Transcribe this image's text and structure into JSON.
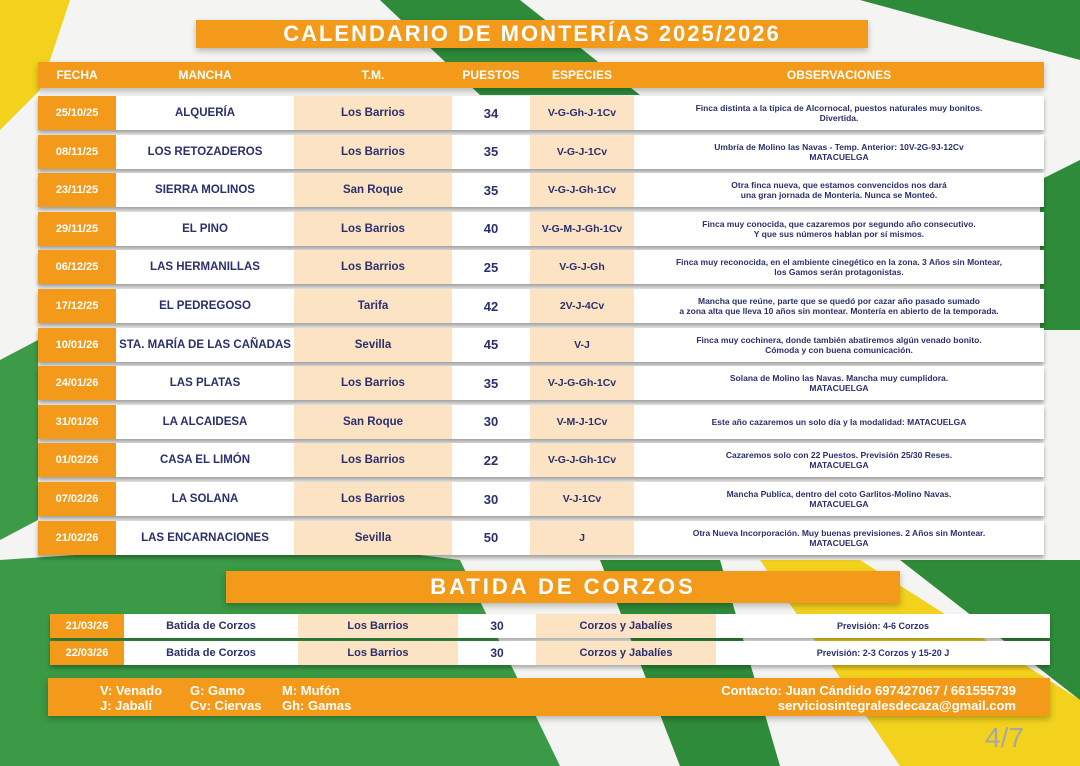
{
  "title": "CALENDARIO DE MONTERÍAS 2025/2026",
  "headers": [
    "FECHA",
    "MANCHA",
    "T.M.",
    "PUESTOS",
    "ESPECIES",
    "OBSERVACIONES"
  ],
  "rows": [
    [
      "25/10/25",
      "ALQUERÍA",
      "Los Barrios",
      "34",
      "V-G-Gh-J-1Cv",
      "Finca distinta a la típica de Alcornocal, puestos naturales muy bonitos.\nDivertida."
    ],
    [
      "08/11/25",
      "LOS RETOZADEROS",
      "Los Barrios",
      "35",
      "V-G-J-1Cv",
      "Umbría de Molino las Navas  - Temp. Anterior: 10V-2G-9J-12Cv\nMATACUELGA"
    ],
    [
      "23/11/25",
      "SIERRA MOLINOS",
      "San Roque",
      "35",
      "V-G-J-Gh-1Cv",
      "Otra finca nueva, que estamos convencidos nos dará\nuna gran jornada de Montería. Nunca se Monteó."
    ],
    [
      "29/11/25",
      "EL PINO",
      "Los Barrios",
      "40",
      "V-G-M-J-Gh-1Cv",
      "Finca muy conocida, que cazaremos por segundo año consecutivo.\nY que sus números hablan por sí mismos."
    ],
    [
      "06/12/25",
      "LAS HERMANILLAS",
      "Los Barrios",
      "25",
      "V-G-J-Gh",
      "Finca muy reconocida, en el ambiente cinegético en la zona. 3 Años sin Montear,\nlos Gamos serán protagonistas."
    ],
    [
      "17/12/25",
      "EL PEDREGOSO",
      "Tarifa",
      "42",
      "2V-J-4Cv",
      "Mancha que reúne, parte que se quedó por cazar año pasado sumado\na zona alta que lleva 10 años sin montear. Montería en abierto de la temporada."
    ],
    [
      "10/01/26",
      "STA. MARÍA DE LAS CAÑADAS",
      "Sevilla",
      "45",
      "V-J",
      "Finca muy cochinera, donde también abatiremos algún venado bonito.\nCómoda y con buena comunicación."
    ],
    [
      "24/01/26",
      "LAS PLATAS",
      "Los Barrios",
      "35",
      "V-J-G-Gh-1Cv",
      "Solana de Molino las Navas. Mancha muy cumplidora.\nMATACUELGA"
    ],
    [
      "31/01/26",
      "LA ALCAIDESA",
      "San Roque",
      "30",
      "V-M-J-1Cv",
      "Este año cazaremos un solo día y la modalidad: MATACUELGA"
    ],
    [
      "01/02/26",
      "CASA EL LIMÓN",
      "Los Barrios",
      "22",
      "V-G-J-Gh-1Cv",
      "Cazaremos solo con 22 Puestos. Previsión 25/30 Reses.\nMATACUELGA"
    ],
    [
      "07/02/26",
      "LA SOLANA",
      "Los Barrios",
      "30",
      "V-J-1Cv",
      "Mancha Publica, dentro del coto Garlitos-Molino Navas.\nMATACUELGA"
    ],
    [
      "21/02/26",
      "LAS ENCARNACIONES",
      "Sevilla",
      "50",
      "J",
      "Otra Nueva Incorporación.  Muy buenas previsiones. 2 Años sin Montear.\nMATACUELGA"
    ]
  ],
  "batida_title": "BATIDA DE CORZOS",
  "batida_rows": [
    [
      "21/03/26",
      "Batida de Corzos",
      "Los Barrios",
      "30",
      "Corzos y Jabalíes",
      "Previsión: 4-6 Corzos"
    ],
    [
      "22/03/26",
      "Batida de Corzos",
      "Los Barrios",
      "30",
      "Corzos y Jabalíes",
      "Previsión: 2-3 Corzos y 15-20 J"
    ]
  ],
  "legend": [
    "V: Venado",
    "G: Gamo",
    "M: Mufón",
    "J: Jabalí",
    "Cv: Ciervas",
    "Gh: Gamas"
  ],
  "contact": {
    "line1": "Contacto:  Juan Cándido  697427067 / 661555739",
    "email": "serviciosintegralesdecaza@gmail.com"
  },
  "page": "4/7",
  "colors": {
    "orange": "#f39a1b",
    "peach": "#fbe3c4",
    "text": "#2b2f6b",
    "green": "#2e8b3a",
    "yellow": "#f2d21c"
  }
}
